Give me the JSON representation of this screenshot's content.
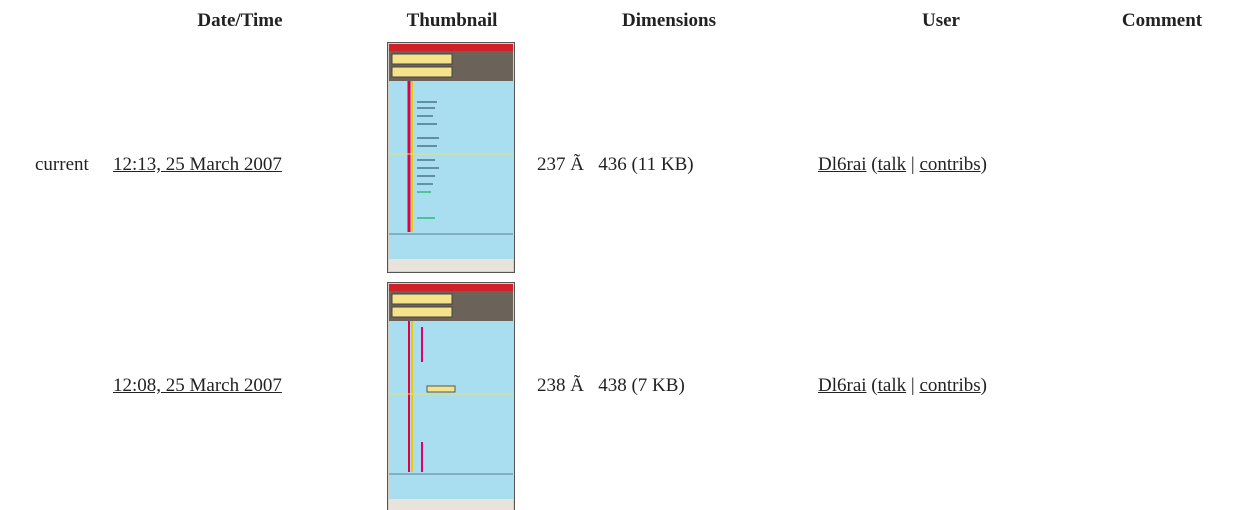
{
  "table": {
    "headers": [
      "Date/Time",
      "Thumbnail",
      "Dimensions",
      "User",
      "Comment"
    ],
    "rows": [
      {
        "status": "current",
        "datetime": "12:13, 25 March 2007",
        "dimensions": "237 Ã   436 (11 KB)",
        "user": "Dl6rai",
        "open": "(",
        "talk": "talk",
        "sep": "|",
        "contribs": "contribs",
        "close": ")"
      },
      {
        "datetime": "12:08, 25 March 2007",
        "dimensions": "238 Ã   438 (7 KB)",
        "user": "Dl6rai",
        "open": "(",
        "talk": "talk",
        "sep": "|",
        "contribs": "contribs",
        "close": ")"
      }
    ]
  }
}
